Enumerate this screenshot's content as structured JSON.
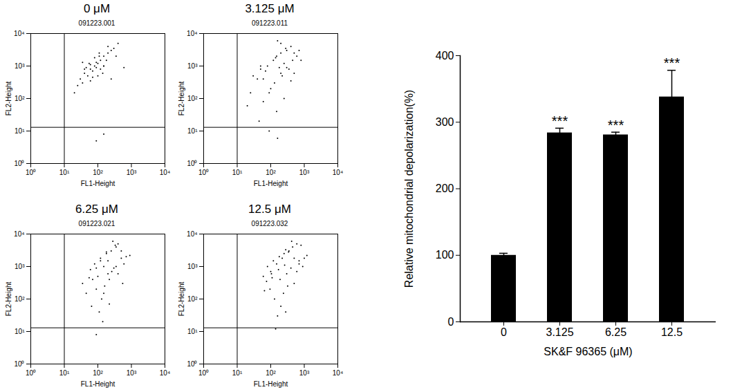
{
  "chart_data": [
    {
      "type": "scatter",
      "title": "0 μM",
      "subtitle": "091223.001",
      "x_label": "FL1-Height",
      "y_label": "FL2-Height",
      "log": true,
      "xlim": [
        1,
        10000
      ],
      "ylim": [
        1,
        10000
      ],
      "xticks": [
        {
          "value": 1,
          "label": "10⁰"
        },
        {
          "value": 10,
          "label": "10¹"
        },
        {
          "value": 100,
          "label": "10²"
        },
        {
          "value": 1000,
          "label": "10³"
        },
        {
          "value": 10000,
          "label": "10⁴"
        }
      ],
      "yticks": [
        {
          "value": 1,
          "label": "10⁰"
        },
        {
          "value": 10,
          "label": "10¹"
        },
        {
          "value": 100,
          "label": "10²"
        },
        {
          "value": 1000,
          "label": "10³"
        },
        {
          "value": 10000,
          "label": "10⁴"
        }
      ],
      "gate": {
        "x": 10,
        "y": 13
      },
      "color": "#000000",
      "x": [
        30,
        40,
        60,
        80,
        100,
        120,
        150,
        200,
        50,
        70,
        35,
        45,
        60,
        90,
        120,
        150,
        250,
        300,
        25,
        90,
        110,
        140,
        180,
        70,
        55,
        40,
        80,
        110,
        200,
        350,
        20,
        400,
        60,
        100,
        150,
        35,
        150,
        600,
        90,
        250
      ],
      "y": [
        400,
        600,
        800,
        1000,
        1200,
        1500,
        2000,
        2500,
        500,
        700,
        300,
        900,
        1100,
        1300,
        800,
        1000,
        3000,
        3500,
        250,
        900,
        2000,
        600,
        1500,
        450,
        1200,
        800,
        1800,
        2500,
        4000,
        2000,
        150,
        5000,
        350,
        500,
        1000,
        1300,
        8,
        900,
        5,
        400
      ]
    },
    {
      "type": "scatter",
      "title": "3.125 μM",
      "subtitle": "091223.011",
      "x_label": "FL1-Height",
      "y_label": "FL2-Height",
      "log": true,
      "xlim": [
        1,
        10000
      ],
      "ylim": [
        1,
        10000
      ],
      "xticks": [
        {
          "value": 1,
          "label": "10⁰"
        },
        {
          "value": 10,
          "label": "10¹"
        },
        {
          "value": 100,
          "label": "10²"
        },
        {
          "value": 1000,
          "label": "10³"
        },
        {
          "value": 10000,
          "label": "10⁴"
        }
      ],
      "yticks": [
        {
          "value": 1,
          "label": "10⁰"
        },
        {
          "value": 10,
          "label": "10¹"
        },
        {
          "value": 100,
          "label": "10²"
        },
        {
          "value": 1000,
          "label": "10³"
        },
        {
          "value": 10000,
          "label": "10⁴"
        }
      ],
      "gate": {
        "x": 10,
        "y": 13
      },
      "color": "#000000",
      "x": [
        30,
        50,
        80,
        120,
        150,
        200,
        300,
        400,
        600,
        40,
        70,
        100,
        180,
        250,
        500,
        25,
        60,
        150,
        220,
        350,
        800,
        45,
        130,
        200,
        280,
        450,
        90,
        160,
        60,
        140,
        300,
        20,
        200,
        400,
        90,
        700,
        160,
        50,
        250,
        500
      ],
      "y": [
        500,
        800,
        1000,
        1500,
        2000,
        2500,
        3000,
        4000,
        2000,
        400,
        700,
        200,
        900,
        1200,
        2500,
        150,
        80,
        40,
        500,
        800,
        1500,
        20,
        300,
        600,
        3500,
        1500,
        10,
        6,
        400,
        1800,
        900,
        60,
        5000,
        350,
        150,
        3000,
        6000,
        1000,
        100,
        600
      ]
    },
    {
      "type": "scatter",
      "title": "6.25 μM",
      "subtitle": "091223.021",
      "x_label": "FL1-Height",
      "y_label": "FL2-Height",
      "log": true,
      "xlim": [
        1,
        10000
      ],
      "ylim": [
        1,
        10000
      ],
      "xticks": [
        {
          "value": 1,
          "label": "10⁰"
        },
        {
          "value": 10,
          "label": "10¹"
        },
        {
          "value": 100,
          "label": "10²"
        },
        {
          "value": 1000,
          "label": "10³"
        },
        {
          "value": 10000,
          "label": "10⁴"
        }
      ],
      "yticks": [
        {
          "value": 1,
          "label": "10⁰"
        },
        {
          "value": 10,
          "label": "10¹"
        },
        {
          "value": 100,
          "label": "10²"
        },
        {
          "value": 1000,
          "label": "10³"
        },
        {
          "value": 10000,
          "label": "10⁴"
        }
      ],
      "gate": {
        "x": 10,
        "y": 13
      },
      "color": "#000000",
      "x": [
        60,
        80,
        120,
        180,
        250,
        350,
        500,
        700,
        100,
        150,
        200,
        400,
        70,
        90,
        130,
        200,
        300,
        600,
        45,
        65,
        110,
        160,
        220,
        400,
        500,
        140,
        90,
        280,
        35,
        180,
        350,
        220,
        120,
        900,
        55,
        260,
        550,
        330,
        150,
        90
      ],
      "y": [
        800,
        1200,
        1800,
        2500,
        3000,
        4000,
        3000,
        2000,
        500,
        1000,
        1500,
        5000,
        400,
        200,
        100,
        600,
        900,
        1200,
        150,
        60,
        40,
        250,
        400,
        600,
        1800,
        20,
        8,
        6000,
        300,
        2800,
        1000,
        70,
        1500,
        2200,
        450,
        700,
        300,
        4500,
        150,
        900
      ]
    },
    {
      "type": "scatter",
      "title": "12.5 μM",
      "subtitle": "091223.032",
      "x_label": "FL1-Height",
      "y_label": "FL2-Height",
      "log": true,
      "xlim": [
        1,
        10000
      ],
      "ylim": [
        1,
        10000
      ],
      "xticks": [
        {
          "value": 1,
          "label": "10⁰"
        },
        {
          "value": 10,
          "label": "10¹"
        },
        {
          "value": 100,
          "label": "10²"
        },
        {
          "value": 1000,
          "label": "10³"
        },
        {
          "value": 10000,
          "label": "10⁴"
        }
      ],
      "yticks": [
        {
          "value": 1,
          "label": "10⁰"
        },
        {
          "value": 10,
          "label": "10¹"
        },
        {
          "value": 100,
          "label": "10²"
        },
        {
          "value": 1000,
          "label": "10³"
        },
        {
          "value": 10000,
          "label": "10⁴"
        }
      ],
      "gate": {
        "x": 10,
        "y": 13
      },
      "color": "#000000",
      "x": [
        80,
        120,
        180,
        250,
        350,
        450,
        600,
        800,
        1200,
        100,
        150,
        220,
        300,
        400,
        700,
        60,
        75,
        95,
        130,
        200,
        280,
        500,
        900,
        160,
        240,
        320,
        420,
        110,
        170,
        260,
        340,
        1000,
        65,
        105,
        190,
        280,
        500,
        600,
        700,
        140
      ],
      "y": [
        1000,
        1500,
        2000,
        2500,
        3000,
        4000,
        5000,
        4500,
        2200,
        700,
        1200,
        1800,
        600,
        900,
        1500,
        500,
        350,
        200,
        100,
        60,
        40,
        300,
        1000,
        30,
        150,
        250,
        6000,
        450,
        800,
        1100,
        2800,
        1800,
        180,
        600,
        400,
        3300,
        1800,
        700,
        1200,
        12
      ]
    },
    {
      "type": "bar",
      "x_label": "SK&F 96365 (μM)",
      "y_label": "Relative mitochondrial depolarization(%)",
      "categories": [
        "0",
        "3.125",
        "6.25",
        "12.5"
      ],
      "values": [
        100,
        284,
        281,
        338
      ],
      "errors": [
        3,
        7,
        4,
        40
      ],
      "significance": [
        null,
        "***",
        "***",
        "***"
      ],
      "ylim": [
        0,
        400
      ],
      "yticks": [
        0,
        100,
        200,
        300,
        400
      ],
      "color": "#000000"
    }
  ]
}
